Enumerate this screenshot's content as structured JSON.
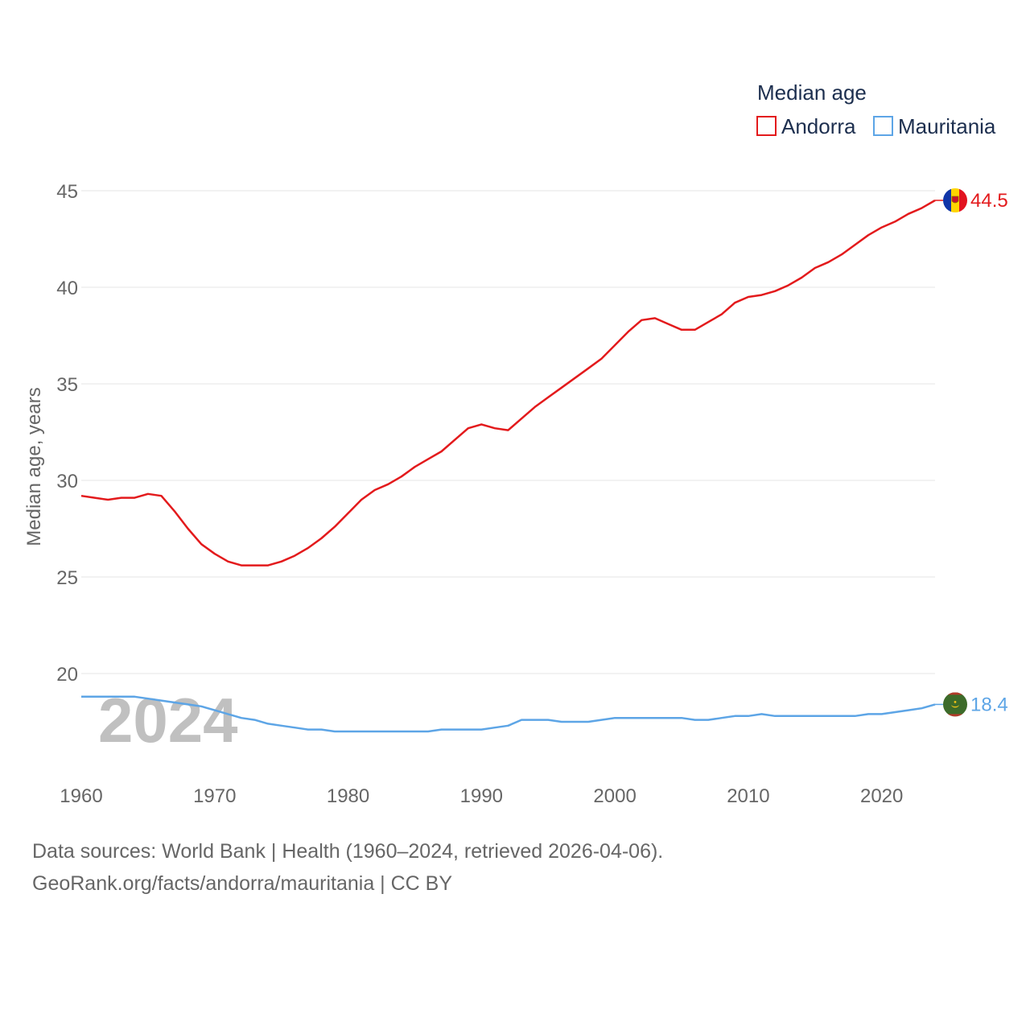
{
  "chart_data": {
    "type": "line",
    "legend_title": "Median age",
    "ylabel": "Median age, years",
    "ylim": [
      15,
      45
    ],
    "yticks": [
      20,
      25,
      30,
      35,
      40,
      45
    ],
    "xlim": [
      1960,
      2024
    ],
    "xticks": [
      1960,
      1970,
      1980,
      1990,
      2000,
      2010,
      2020
    ],
    "watermark_year": "2024",
    "legend_position": "top-right",
    "x": [
      1960,
      1961,
      1962,
      1963,
      1964,
      1965,
      1966,
      1967,
      1968,
      1969,
      1970,
      1971,
      1972,
      1973,
      1974,
      1975,
      1976,
      1977,
      1978,
      1979,
      1980,
      1981,
      1982,
      1983,
      1984,
      1985,
      1986,
      1987,
      1988,
      1989,
      1990,
      1991,
      1992,
      1993,
      1994,
      1995,
      1996,
      1997,
      1998,
      1999,
      2000,
      2001,
      2002,
      2003,
      2004,
      2005,
      2006,
      2007,
      2008,
      2009,
      2010,
      2011,
      2012,
      2013,
      2014,
      2015,
      2016,
      2017,
      2018,
      2019,
      2020,
      2021,
      2022,
      2023,
      2024
    ],
    "series": [
      {
        "name": "Andorra",
        "color": "#e31a1c",
        "end_label": "44.5",
        "flag": "andorra-flag-icon",
        "values": [
          29.2,
          29.1,
          29.0,
          29.1,
          29.1,
          29.3,
          29.2,
          28.4,
          27.5,
          26.7,
          26.2,
          25.8,
          25.6,
          25.6,
          25.6,
          25.8,
          26.1,
          26.5,
          27.0,
          27.6,
          28.3,
          29.0,
          29.5,
          29.8,
          30.2,
          30.7,
          31.1,
          31.5,
          32.1,
          32.7,
          32.9,
          32.7,
          32.6,
          33.2,
          33.8,
          34.3,
          34.8,
          35.3,
          35.8,
          36.3,
          37.0,
          37.7,
          38.3,
          38.4,
          38.1,
          37.8,
          37.8,
          38.2,
          38.6,
          39.2,
          39.5,
          39.6,
          39.8,
          40.1,
          40.5,
          41.0,
          41.3,
          41.7,
          42.2,
          42.7,
          43.1,
          43.4,
          43.8,
          44.1,
          44.5
        ]
      },
      {
        "name": "Mauritania",
        "color": "#5da5e6",
        "end_label": "18.4",
        "flag": "mauritania-flag-icon",
        "values": [
          18.8,
          18.8,
          18.8,
          18.8,
          18.8,
          18.7,
          18.6,
          18.5,
          18.4,
          18.3,
          18.1,
          17.9,
          17.7,
          17.6,
          17.4,
          17.3,
          17.2,
          17.1,
          17.1,
          17.0,
          17.0,
          17.0,
          17.0,
          17.0,
          17.0,
          17.0,
          17.0,
          17.1,
          17.1,
          17.1,
          17.1,
          17.2,
          17.3,
          17.6,
          17.6,
          17.6,
          17.5,
          17.5,
          17.5,
          17.6,
          17.7,
          17.7,
          17.7,
          17.7,
          17.7,
          17.7,
          17.6,
          17.6,
          17.7,
          17.8,
          17.8,
          17.9,
          17.8,
          17.8,
          17.8,
          17.8,
          17.8,
          17.8,
          17.8,
          17.9,
          17.9,
          18.0,
          18.1,
          18.2,
          18.4
        ]
      }
    ]
  },
  "footer": {
    "sources": "Data sources: World Bank | Health (1960–2024, retrieved 2026-04-06).",
    "attribution": "GeoRank.org/facts/andorra/mauritania | CC BY"
  }
}
